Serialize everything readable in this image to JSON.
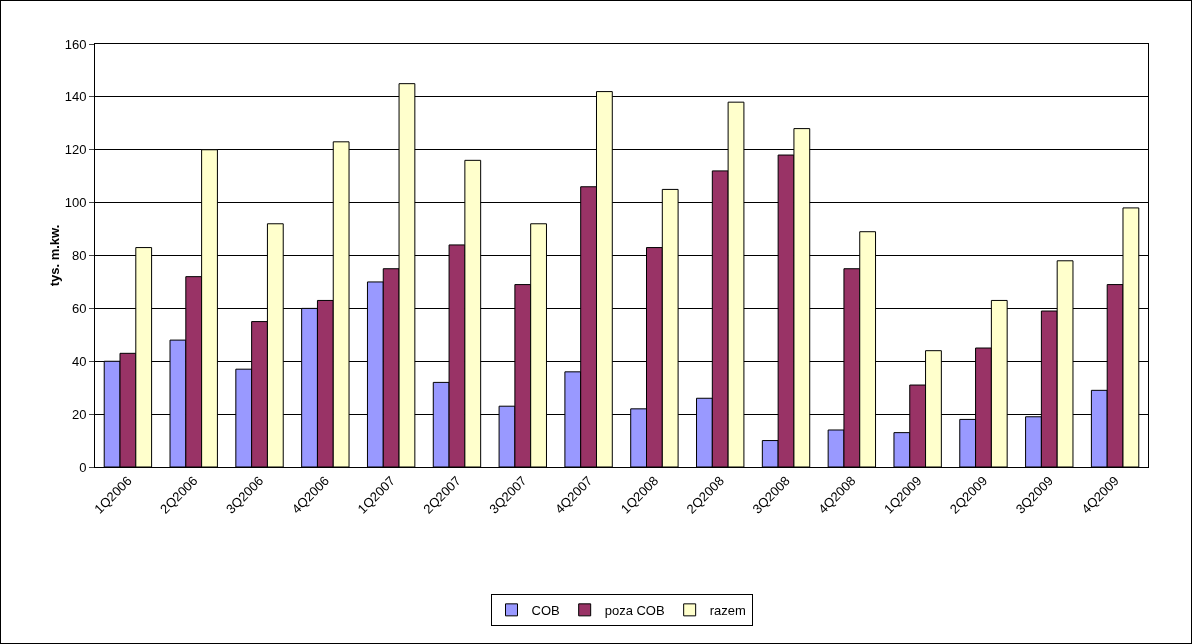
{
  "chart_data": {
    "type": "bar",
    "ylabel": "tys. m.kw.",
    "categories": [
      "1Q2006",
      "2Q2006",
      "3Q2006",
      "4Q2006",
      "1Q2007",
      "2Q2007",
      "3Q2007",
      "4Q2007",
      "1Q2008",
      "2Q2008",
      "3Q2008",
      "4Q2008",
      "1Q2009",
      "2Q2009",
      "3Q2009",
      "4Q2009"
    ],
    "series": [
      {
        "name": "COB",
        "color": "#9999ff",
        "values": [
          40,
          48,
          37,
          60,
          70,
          32,
          23,
          36,
          22,
          26,
          10,
          14,
          13,
          18,
          19,
          29
        ]
      },
      {
        "name": "poza COB",
        "color": "#993366",
        "values": [
          43,
          72,
          55,
          63,
          75,
          84,
          69,
          106,
          83,
          112,
          118,
          75,
          31,
          45,
          59,
          69
        ]
      },
      {
        "name": "razem",
        "color": "#ffffcc",
        "values": [
          83,
          120,
          92,
          123,
          145,
          116,
          92,
          142,
          105,
          138,
          128,
          89,
          44,
          63,
          78,
          98
        ]
      }
    ],
    "ylim": [
      0,
      160
    ],
    "yticks": [
      0,
      20,
      40,
      60,
      80,
      100,
      120,
      140,
      160
    ],
    "grid": "y",
    "legend": "bottom"
  }
}
